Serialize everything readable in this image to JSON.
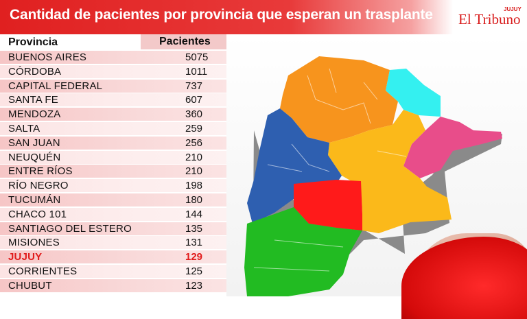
{
  "header": {
    "title": "Cantidad de pacientes por provincia que esperan un trasplante",
    "logo_text": "El Tribuno",
    "logo_subtext": "JUJUY"
  },
  "table": {
    "col_province": "Provincia",
    "col_patients": "Pacientes",
    "rows": [
      {
        "province": "BUENOS AIRES",
        "patients": "5075"
      },
      {
        "province": "CÓRDOBA",
        "patients": "1011"
      },
      {
        "province": "CAPITAL FEDERAL",
        "patients": "737"
      },
      {
        "province": "SANTA FE",
        "patients": "607"
      },
      {
        "province": "MENDOZA",
        "patients": "360"
      },
      {
        "province": "SALTA",
        "patients": "259"
      },
      {
        "province": "SAN JUAN",
        "patients": "256"
      },
      {
        "province": "NEUQUÉN",
        "patients": "210"
      },
      {
        "province": "ENTRE RÍOS",
        "patients": "210"
      },
      {
        "province": "RÍO NEGRO",
        "patients": "198"
      },
      {
        "province": "TUCUMÁN",
        "patients": "180"
      },
      {
        "province": "CHACO 101",
        "patients": "144"
      },
      {
        "province": "SANTIAGO DEL ESTERO",
        "patients": "135"
      },
      {
        "province": "MISIONES",
        "patients": "131"
      },
      {
        "province": "JUJUY",
        "patients": "129"
      },
      {
        "province": "CORRIENTES",
        "patients": "125"
      },
      {
        "province": "CHUBUT",
        "patients": "123"
      }
    ]
  },
  "colors": {
    "header_red": "#e02020",
    "highlight_red": "#e11b1b",
    "map_orange": "#f7941d",
    "map_yellow": "#fbb91a",
    "map_blue": "#2e5fb0",
    "map_cyan": "#34f0f0",
    "map_pink": "#e84d8a",
    "map_red": "#ff0000",
    "map_green": "#22bb22"
  }
}
